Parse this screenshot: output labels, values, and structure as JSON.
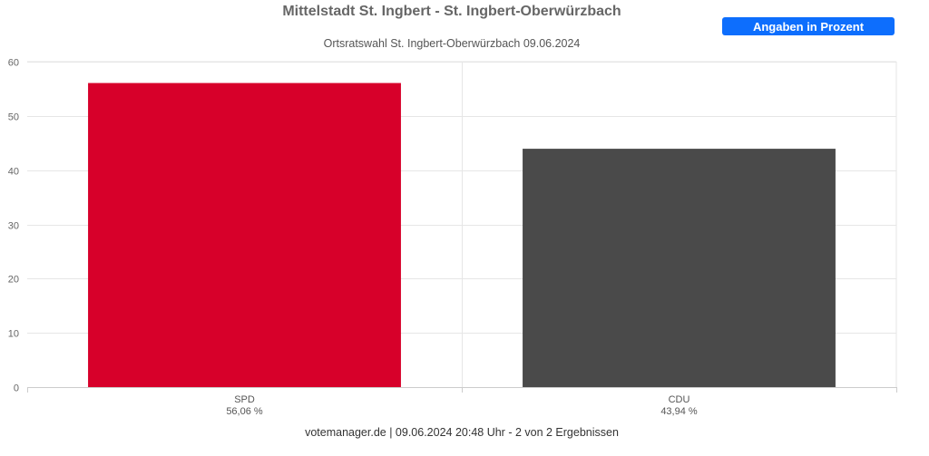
{
  "title": "Mittelstadt St. Ingbert - St. Ingbert-Oberwürzbach",
  "subtitle": "Ortsratswahl St. Ingbert-Oberwürzbach 09.06.2024",
  "unit_button": "Angaben in Prozent",
  "footer": "votemanager.de | 09.06.2024 20:48 Uhr - 2 von 2 Ergebnissen",
  "chart_data": {
    "type": "bar",
    "categories": [
      "SPD",
      "CDU"
    ],
    "values": [
      56.06,
      43.94
    ],
    "value_labels": [
      "56,06 %",
      "43,94 %"
    ],
    "colors": [
      "#d7002a",
      "#4a4a4a"
    ],
    "ylim": [
      0,
      60
    ],
    "yticks": [
      0,
      10,
      20,
      30,
      40,
      50,
      60
    ],
    "grid": true,
    "legend": "none"
  }
}
